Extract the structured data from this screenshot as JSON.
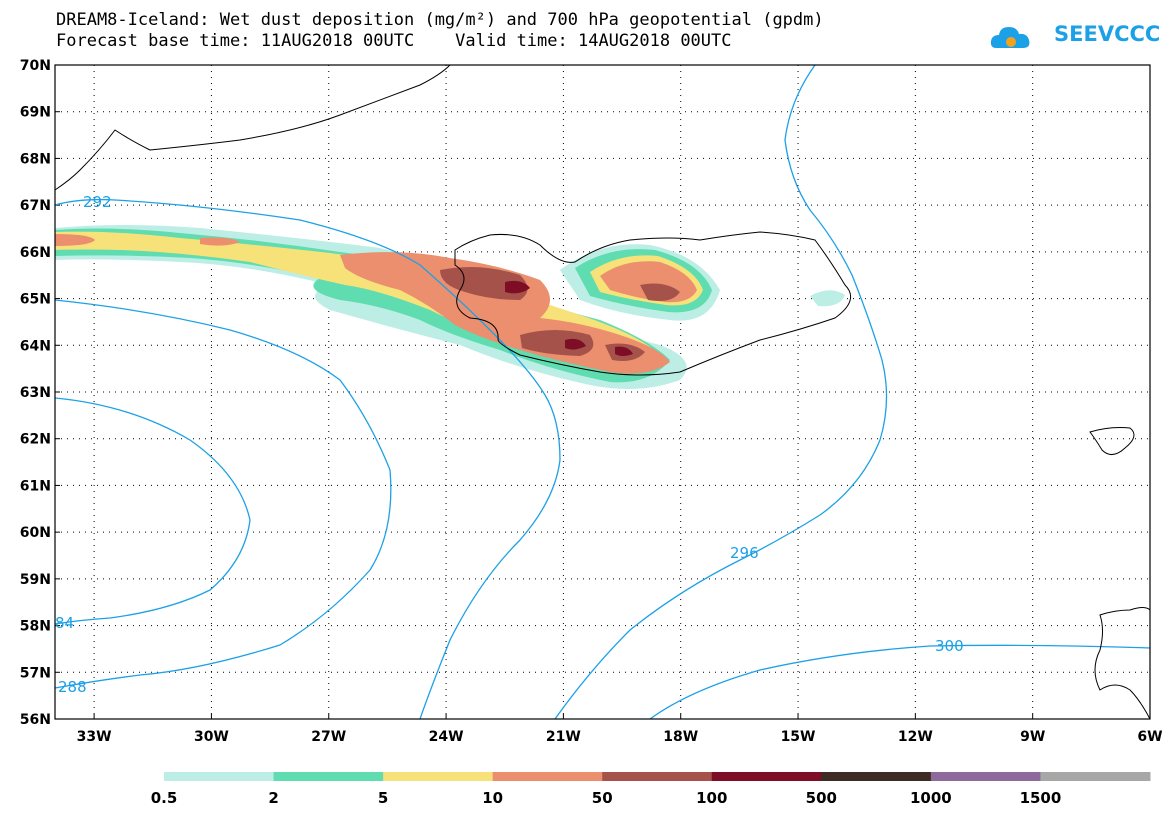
{
  "title": {
    "line1": "DREAM8-Iceland: Wet dust deposition (mg/m²) and 700 hPa geopotential (gpdm)",
    "line2": "Forecast base time: 11AUG2018 00UTC    Valid time: 14AUG2018 00UTC"
  },
  "logo": {
    "text": "SEEVCCC",
    "icon": "cloud-icon",
    "color": "#1da1e6"
  },
  "axes": {
    "lat_labels": [
      "70N",
      "69N",
      "68N",
      "67N",
      "66N",
      "65N",
      "64N",
      "63N",
      "62N",
      "61N",
      "60N",
      "59N",
      "58N",
      "57N",
      "56N"
    ],
    "lon_labels": [
      "33W",
      "30W",
      "27W",
      "24W",
      "21W",
      "18W",
      "15W",
      "12W",
      "9W",
      "6W"
    ]
  },
  "contours": {
    "color": "#1da1e6",
    "labels": [
      "292",
      "296",
      "300",
      "288",
      "84"
    ]
  },
  "legend": {
    "colors": [
      "#bdeee6",
      "#5fdcb0",
      "#f7e27a",
      "#eb8f6e",
      "#a5534a",
      "#7e0d26",
      "#3d2b24",
      "#8e6a9c",
      "#a7a7a7"
    ],
    "labels": [
      "0.5",
      "2",
      "5",
      "10",
      "50",
      "100",
      "500",
      "1000",
      "1500"
    ]
  }
}
